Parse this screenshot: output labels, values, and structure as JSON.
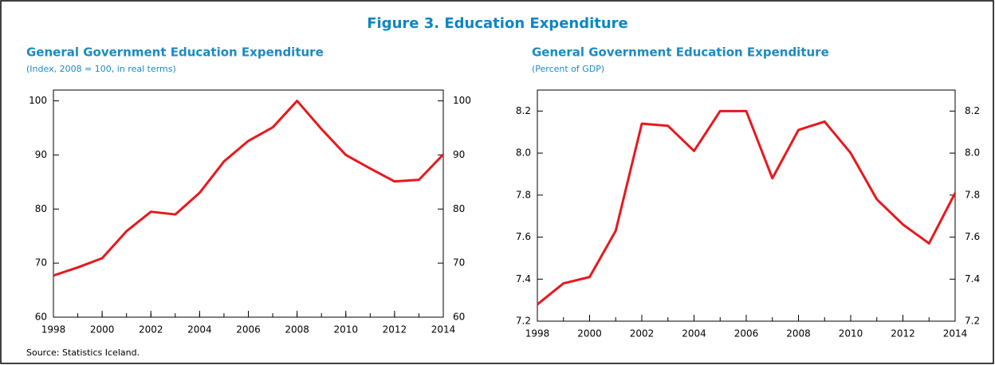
{
  "title": "Figure 3. Education Expenditure",
  "source": "Source: Statistics Iceland.",
  "chart_data": [
    {
      "type": "line",
      "title": "General Government Education Expenditure",
      "subtitle": "(Index, 2008 = 100, in real terms)",
      "x": [
        1998,
        1999,
        2000,
        2001,
        2002,
        2003,
        2004,
        2005,
        2006,
        2007,
        2008,
        2009,
        2010,
        2011,
        2012,
        2013,
        2014
      ],
      "values": [
        67.7,
        69.2,
        70.9,
        75.9,
        79.5,
        79.0,
        83.0,
        88.8,
        92.6,
        95.1,
        100,
        94.8,
        90.0,
        87.5,
        85.1,
        85.4,
        90.1
      ],
      "color": "#e8181d",
      "xlim": [
        1998,
        2014
      ],
      "xticks": [
        1998,
        2000,
        2002,
        2004,
        2006,
        2008,
        2010,
        2012,
        2014
      ],
      "ylim": [
        60,
        102
      ],
      "yticks": [
        60,
        70,
        80,
        90,
        100
      ]
    },
    {
      "type": "line",
      "title": "General Government Education Expenditure",
      "subtitle": "(Percent of GDP)",
      "x": [
        1998,
        1999,
        2000,
        2001,
        2002,
        2003,
        2004,
        2005,
        2006,
        2007,
        2008,
        2009,
        2010,
        2011,
        2012,
        2013,
        2014
      ],
      "values": [
        7.28,
        7.38,
        7.41,
        7.63,
        8.14,
        8.13,
        8.01,
        8.2,
        8.2,
        7.88,
        8.11,
        8.15,
        8.0,
        7.78,
        7.66,
        7.57,
        7.81
      ],
      "color": "#e8181d",
      "xlim": [
        1998,
        2014
      ],
      "xticks": [
        1998,
        2000,
        2002,
        2004,
        2006,
        2008,
        2010,
        2012,
        2014
      ],
      "ylim": [
        7.2,
        8.3
      ],
      "yticks": [
        7.2,
        7.4,
        7.6,
        7.8,
        {
          "value": 8,
          "label": "8.0"
        },
        8.2
      ]
    }
  ]
}
